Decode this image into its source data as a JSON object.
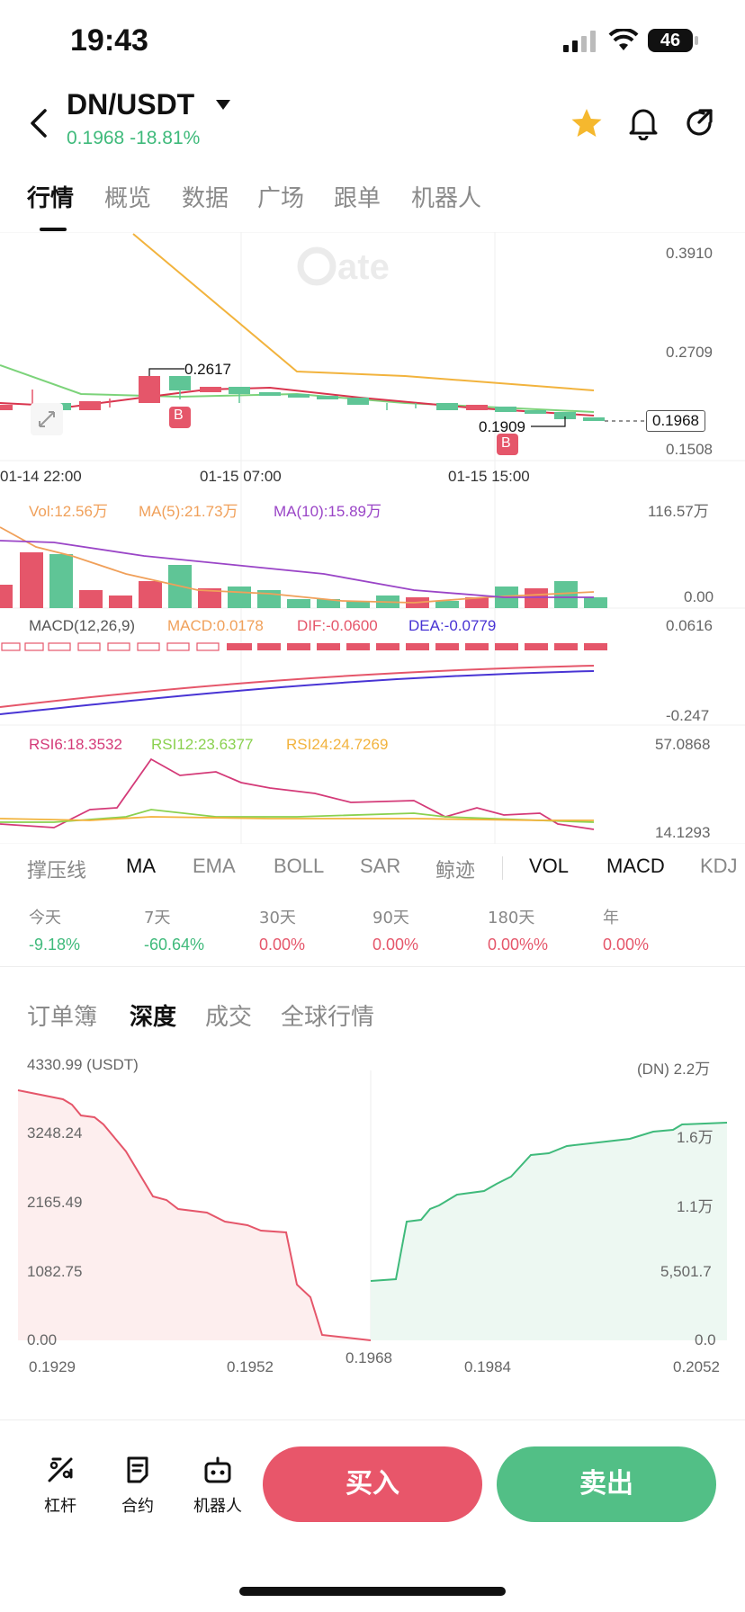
{
  "status_bar": {
    "time": "19:43",
    "battery": "46"
  },
  "header": {
    "pair": "DN/USDT",
    "price": "0.1968",
    "change": "-18.81%",
    "colors": {
      "up": "#3fba7b",
      "down": "#e5566a",
      "star": "#f5b82e"
    }
  },
  "tabs": [
    "行情",
    "概览",
    "数据",
    "广场",
    "跟单",
    "机器人"
  ],
  "price_chart": {
    "y_labels": [
      "0.3910",
      "0.2709",
      "0.1508"
    ],
    "current_price": "0.1968",
    "high_label": "0.2617",
    "low_label": "0.1909",
    "buy_marker": "B",
    "x_labels": [
      "01-14 22:00",
      "01-15 07:00",
      "01-15 15:00"
    ],
    "watermark": "Gate"
  },
  "volume": {
    "vol": "Vol:12.56万",
    "ma5": "MA(5):21.73万",
    "ma10": "MA(10):15.89万",
    "max": "116.57万",
    "min": "0.00"
  },
  "macd": {
    "title": "MACD(12,26,9)",
    "macd": "MACD:0.0178",
    "dif": "DIF:-0.0600",
    "dea": "DEA:-0.0779",
    "max": "0.0616",
    "min": "-0.247"
  },
  "rsi": {
    "rsi6": "RSI6:18.3532",
    "rsi12": "RSI12:23.6377",
    "rsi24": "RSI24:24.7269",
    "max": "57.0868",
    "min": "14.1293"
  },
  "indicator_tabs": [
    "撑压线",
    "MA",
    "EMA",
    "BOLL",
    "SAR",
    "鲸迹",
    "VOL",
    "MACD",
    "KDJ"
  ],
  "performance": [
    {
      "period": "今天",
      "value": "-9.18%"
    },
    {
      "period": "7天",
      "value": "-60.64%"
    },
    {
      "period": "30天",
      "value": "0.00%"
    },
    {
      "period": "90天",
      "value": "0.00%"
    },
    {
      "period": "180天",
      "value": "0.00%%"
    },
    {
      "period": "年",
      "value": "0.00%"
    }
  ],
  "sub_tabs": [
    "订单簿",
    "深度",
    "成交",
    "全球行情"
  ],
  "depth": {
    "left_top": "4330.99 (USDT)",
    "right_top": "(DN) 2.2万",
    "left_y": [
      "3248.24",
      "2165.49",
      "1082.75",
      "0.00"
    ],
    "right_y": [
      "1.6万",
      "1.1万",
      "5,501.7",
      "0.0"
    ],
    "x_labels": [
      "0.1929",
      "0.1952",
      "0.1968",
      "0.1984",
      "0.2052"
    ]
  },
  "bottom_bar": {
    "leverage": "杠杆",
    "futures": "合约",
    "bots": "机器人",
    "buy": "买入",
    "sell": "卖出"
  }
}
